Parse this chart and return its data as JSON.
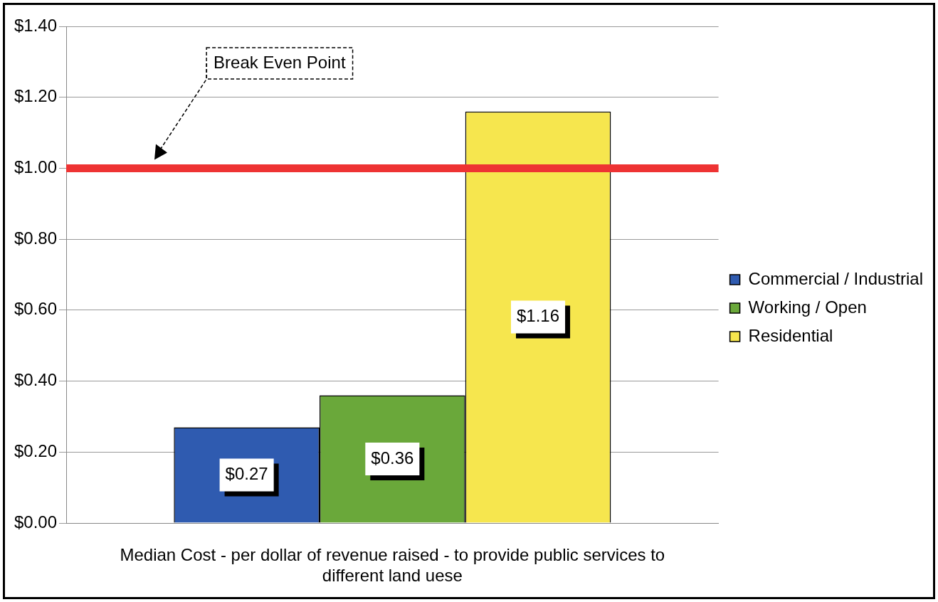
{
  "chart_data": {
    "type": "bar",
    "xlabel": "Median Cost - per dollar of revenue raised - to provide public services to different land uese",
    "categories": [
      null
    ],
    "series": [
      {
        "name": "Commercial / Industrial",
        "color": "#2f5bb0",
        "values": [
          0.27
        ],
        "value_labels": [
          "$0.27"
        ]
      },
      {
        "name": "Working / Open",
        "color": "#6aa83a",
        "values": [
          0.36
        ],
        "value_labels": [
          "$0.36"
        ]
      },
      {
        "name": "Residential",
        "color": "#f6e64e",
        "values": [
          1.16
        ],
        "value_labels": [
          "$1.16"
        ]
      }
    ],
    "ylim": [
      0,
      1.4
    ],
    "yticks": [
      {
        "value": 0,
        "label": "$0.00"
      },
      {
        "value": 0.2,
        "label": "$0.20"
      },
      {
        "value": 0.4,
        "label": "$0.40"
      },
      {
        "value": 0.6,
        "label": "$0.60"
      },
      {
        "value": 0.8,
        "label": "$0.80"
      },
      {
        "value": 1,
        "label": "$1.00"
      },
      {
        "value": 1.2,
        "label": "$1.20"
      },
      {
        "value": 1.4,
        "label": "$1.40"
      }
    ],
    "ref_lines": [
      {
        "axis": "y",
        "value": 1,
        "color": "#ee3333"
      }
    ],
    "annotations": [
      "Break Even Point"
    ],
    "grid": "y",
    "legend": "right"
  }
}
